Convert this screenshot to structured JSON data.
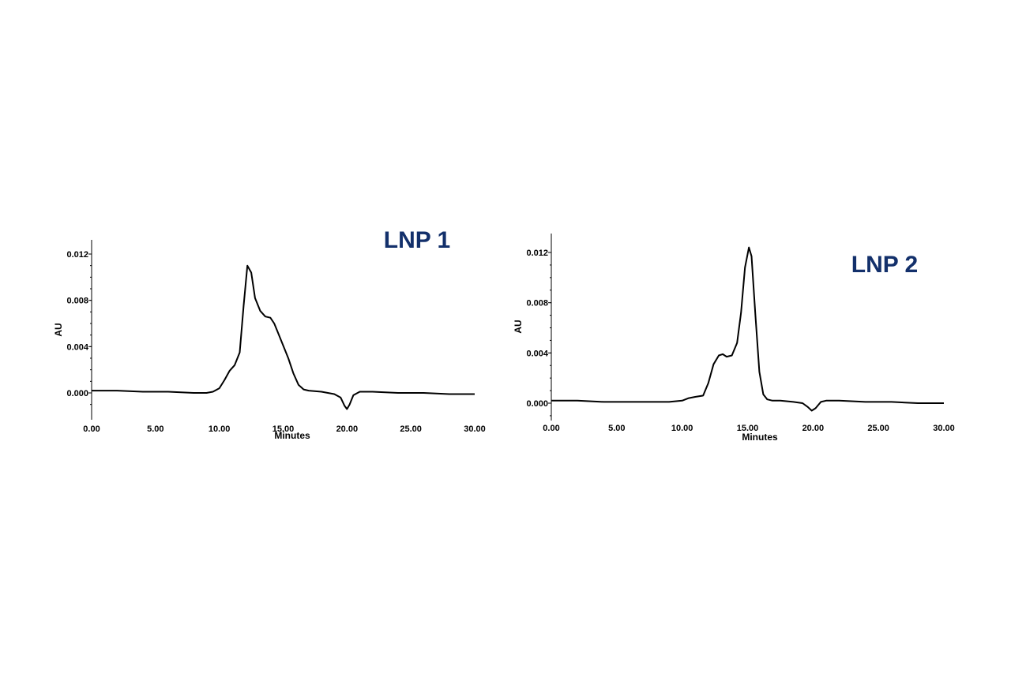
{
  "colors": {
    "title": "#13306b",
    "trace": "#000000",
    "axis": "#000000",
    "background": "#ffffff"
  },
  "chart_data": [
    {
      "type": "line",
      "title": "LNP 1",
      "xlabel": "Minutes",
      "ylabel": "AU",
      "xlim": [
        0,
        30
      ],
      "ylim": [
        -0.002,
        0.013
      ],
      "xticks": [
        0,
        5,
        10,
        15,
        20,
        25,
        30
      ],
      "xtick_labels": [
        "0.00",
        "5.00",
        "10.00",
        "15.00",
        "20.00",
        "25.00",
        "30.00"
      ],
      "yticks": [
        0,
        0.004,
        0.008,
        0.012
      ],
      "ytick_labels": [
        "0.000",
        "0.004",
        "0.008",
        "0.012"
      ],
      "grid": false,
      "legend": "none",
      "series": [
        {
          "x": [
            0,
            2,
            4,
            6,
            8,
            9,
            9.5,
            10,
            10.4,
            10.8,
            11.2,
            11.6,
            11.9,
            12.2,
            12.5,
            12.8,
            13.2,
            13.6,
            14.0,
            14.3,
            14.6,
            15.0,
            15.4,
            15.8,
            16.2,
            16.6,
            17.0,
            18,
            19,
            19.5,
            19.8,
            20.0,
            20.2,
            20.5,
            21,
            22,
            24,
            26,
            28,
            30
          ],
          "y": [
            0.0002,
            0.0002,
            0.0001,
            0.0001,
            0.0,
            0.0,
            0.0001,
            0.0004,
            0.0011,
            0.0019,
            0.0024,
            0.0035,
            0.0075,
            0.011,
            0.0104,
            0.0082,
            0.0071,
            0.0066,
            0.0065,
            0.006,
            0.0052,
            0.0041,
            0.003,
            0.0017,
            0.0007,
            0.0003,
            0.0002,
            0.0001,
            -0.0001,
            -0.0004,
            -0.0011,
            -0.0014,
            -0.001,
            -0.0002,
            0.0001,
            0.0001,
            0.0,
            0.0,
            -0.0001,
            -0.0001
          ]
        }
      ]
    },
    {
      "type": "line",
      "title": "LNP 2",
      "xlabel": "Minutes",
      "ylabel": "AU",
      "xlim": [
        0,
        30
      ],
      "ylim": [
        -0.0013,
        0.0133
      ],
      "xticks": [
        0,
        5,
        10,
        15,
        20,
        25,
        30
      ],
      "xtick_labels": [
        "0.00",
        "5.00",
        "10.00",
        "15.00",
        "20.00",
        "25.00",
        "30.00"
      ],
      "yticks": [
        0,
        0.004,
        0.008,
        0.012
      ],
      "ytick_labels": [
        "0.000",
        "0.004",
        "0.008",
        "0.012"
      ],
      "grid": false,
      "legend": "none",
      "series": [
        {
          "x": [
            0,
            2,
            4,
            6,
            8,
            9,
            10,
            10.5,
            11.0,
            11.6,
            12.0,
            12.4,
            12.8,
            13.1,
            13.4,
            13.8,
            14.2,
            14.5,
            14.8,
            15.1,
            15.3,
            15.6,
            15.9,
            16.2,
            16.5,
            16.9,
            17.5,
            18.5,
            19.2,
            19.6,
            19.9,
            20.2,
            20.6,
            21,
            22,
            24,
            26,
            28,
            30
          ],
          "y": [
            0.0002,
            0.0002,
            0.0001,
            0.0001,
            0.0001,
            0.0001,
            0.0002,
            0.0004,
            0.0005,
            0.0006,
            0.0016,
            0.0031,
            0.0038,
            0.0039,
            0.0037,
            0.0038,
            0.0048,
            0.0072,
            0.0108,
            0.0124,
            0.0117,
            0.007,
            0.0025,
            0.0007,
            0.0003,
            0.0002,
            0.0002,
            0.0001,
            0.0,
            -0.0003,
            -0.0006,
            -0.0004,
            0.0001,
            0.0002,
            0.0002,
            0.0001,
            0.0001,
            0.0,
            0.0
          ]
        }
      ]
    }
  ]
}
